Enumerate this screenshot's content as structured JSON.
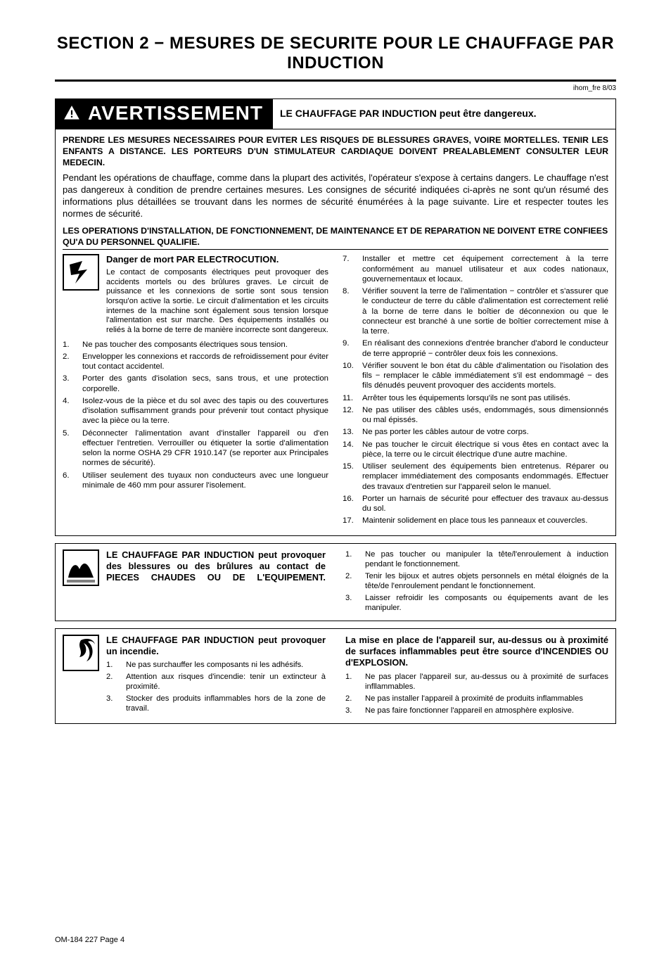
{
  "section_title": "SECTION 2 − MESURES DE SECURITE POUR LE CHAUFFAGE PAR INDUCTION",
  "doc_ref_top": "ihom_fre 8/03",
  "warning_label": "AVERTISSEMENT",
  "warning_headline": "LE CHAUFFAGE PAR INDUCTION peut être dangereux.",
  "intro_bold": "PRENDRE LES MESURES NECESSAIRES POUR EVITER LES RISQUES DE BLESSURES GRAVES, VOIRE MORTELLES. TENIR LES ENFANTS A DISTANCE. LES PORTEURS D'UN STIMULATEUR CARDIAQUE DOIVENT PREALABLEMENT CONSULTER LEUR MEDECIN.",
  "intro_plain": "Pendant les opérations de chauffage, comme dans la plupart des activités, l'opérateur s'expose à certains dangers. Le chauffage n'est pas dangereux à condition de prendre certaines mesures. Les consignes de sécurité indiquées ci-après ne sont qu'un résumé des informations plus détaillées se trouvant dans les normes de sécurité énumérées à la page suivante. Lire et respecter toutes les normes de sécurité.",
  "qualified_bold": "LES OPERATIONS D'INSTALLATION, DE FONCTIONNEMENT, DE MAINTENANCE ET DE REPARATION NE DOIVENT ETRE CONFIEES QU'A DU PERSONNEL QUALIFIE.",
  "electrocution": {
    "title": "Danger de mort PAR ELECTROCUTION.",
    "desc": "Le contact de composants électriques peut provoquer des accidents mortels ou des brûlures graves. Le circuit de puissance et les connexions de sortie sont sous tension lorsqu'on active la sortie. Le circuit d'alimentation et les circuits internes de la machine sont également sous tension lorsque l'alimentation est sur marche. Des équipements installés ou reliés à la borne de terre de manière incorrecte sont dangereux.",
    "left_list": [
      "Ne pas toucher des composants électriques sous tension.",
      "Envelopper les connexions et raccords de refroidissement pour éviter tout contact accidentel.",
      "Porter des gants d'isolation secs, sans trous, et une protection corporelle.",
      "Isolez-vous de la pièce et du sol avec des tapis ou des couvertures d'isolation suffisamment grands pour prévenir tout contact physique avec la pièce ou la terre.",
      "Déconnecter l'alimentation avant d'installer l'appareil ou d'en effectuer l'entretien. Verrouiller ou étiqueter la sortie d'alimentation selon la norme OSHA 29 CFR 1910.147 (se reporter aux Principales normes de sécurité).",
      "Utiliser seulement des tuyaux non conducteurs avec une longueur minimale de 460 mm pour assurer l'isolement."
    ],
    "right_list": [
      "Installer et mettre cet équipement correctement à la terre conformément au manuel utilisateur et aux codes nationaux, gouvernementaux et locaux.",
      "Vérifier souvent la terre de l'alimentation − contrôler et s'assurer que le conducteur de terre du câble d'alimentation est correctement relié à la borne de terre dans le boîtier de déconnexion ou que le connecteur est branché à une sortie de boîtier correctement mise à la terre.",
      "En réalisant des connexions d'entrée brancher d'abord le conducteur de terre approprié − contrôler deux fois les connexions.",
      "Vérifier souvent le bon état du câble d'alimentation ou l'isolation des fils − remplacer le câble immédiatement s'il est endommagé − des fils dénudés peuvent provoquer des accidents mortels.",
      "Arrêter tous les équipements lorsqu'ils ne sont pas utilisés.",
      "Ne pas utiliser des câbles usés, endommagés, sous dimensionnés ou mal épissés.",
      "Ne pas porter les câbles autour de votre corps.",
      "Ne pas toucher le circuit électrique si vous êtes en contact avec la pièce, la terre ou le circuit électrique d'une autre machine.",
      "Utiliser seulement des équipements bien entretenus. Réparer ou remplacer immédiatement des composants endommagés. Effectuer des travaux d'entretien sur l'appareil selon le manuel.",
      "Porter un harnais de sécurité pour effectuer des travaux au-dessus du sol.",
      "Maintenir solidement en place tous les panneaux et couvercles."
    ]
  },
  "hot_parts": {
    "title": "LE CHAUFFAGE PAR INDUCTION peut provoquer des blessures ou des brûlures au contact de PIECES CHAUDES OU DE L'EQUIPEMENT.",
    "right_list": [
      "Ne pas toucher ou manipuler la tête/l'enroulement à induction pendant le fonctionnement.",
      "Tenir les bijoux et autres objets personnels en métal éloignés de la tête/de l'enroulement pendant le fonctionnement.",
      "Laisser refroidir les composants ou équipements avant de les manipuler."
    ]
  },
  "fire": {
    "left_title": "LE CHAUFFAGE PAR INDUCTION peut provoquer un incendie.",
    "left_list": [
      "Ne pas surchauffer les composants ni les adhésifs.",
      "Attention aux risques d'incendie: tenir un extincteur à proximité.",
      "Stocker des produits inflammables hors de la zone de travail."
    ],
    "right_title": "La mise en place de l'appareil sur, au-dessus ou à proximité de surfaces inflammables peut être source d'INCENDIES OU d'EXPLOSION.",
    "right_list": [
      "Ne pas placer l'appareil sur, au-dessus ou à proximité de surfaces infllammables.",
      "Ne pas installer l'appareil à proximité de produits inflammables",
      "Ne pas faire fonctionner l'appareil en atmosphère explosive."
    ]
  },
  "footer": "OM-184 227 Page 4"
}
